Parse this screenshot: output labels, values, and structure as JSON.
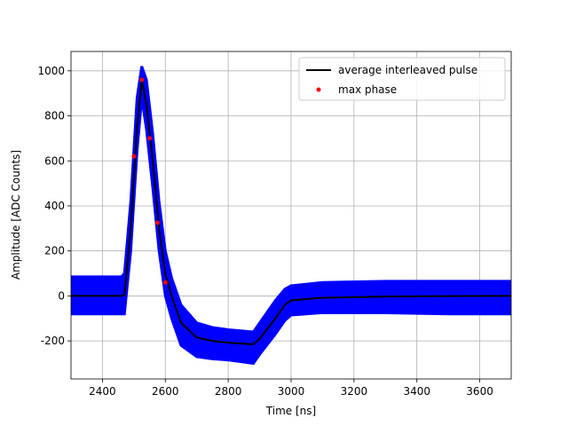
{
  "chart_data": {
    "type": "line",
    "xlabel": "Time [ns]",
    "ylabel": "Amplitude [ADC Counts]",
    "xlim": [
      2300,
      3700
    ],
    "ylim": [
      -369,
      1086
    ],
    "xticks": [
      2400,
      2600,
      2800,
      3000,
      3200,
      3400,
      3600
    ],
    "yticks": [
      -200,
      0,
      200,
      400,
      600,
      800,
      1000
    ],
    "grid": true,
    "legend": "upper right",
    "x": [
      2300,
      2460,
      2470,
      2490,
      2510,
      2525,
      2540,
      2560,
      2580,
      2600,
      2620,
      2650,
      2700,
      2750,
      2800,
      2880,
      2900,
      2950,
      2980,
      3000,
      3100,
      3300,
      3500,
      3700
    ],
    "band": {
      "color": "#0000ff",
      "upper": [
        85,
        85,
        100,
        420,
        880,
        1020,
        960,
        720,
        420,
        200,
        80,
        -40,
        -120,
        -140,
        -150,
        -160,
        -120,
        -20,
        30,
        45,
        60,
        65,
        65,
        65
      ],
      "lower": [
        -80,
        -80,
        -80,
        200,
        640,
        880,
        740,
        480,
        200,
        0,
        -100,
        -220,
        -270,
        -280,
        -285,
        -300,
        -260,
        -170,
        -110,
        -85,
        -75,
        -75,
        -80,
        -80
      ]
    },
    "series": [
      {
        "name": "average interleaved pulse",
        "color": "#000000",
        "kind": "line",
        "values": [
          0,
          0,
          5,
          300,
          750,
          960,
          850,
          600,
          300,
          100,
          0,
          -120,
          -185,
          -200,
          -208,
          -215,
          -190,
          -100,
          -40,
          -20,
          -8,
          -3,
          -1,
          0
        ]
      },
      {
        "name": "max phase",
        "color": "#ff0000",
        "kind": "points",
        "x": [
          2500,
          2525,
          2550,
          2575,
          2600
        ],
        "values": [
          620,
          960,
          700,
          325,
          60
        ]
      }
    ]
  }
}
